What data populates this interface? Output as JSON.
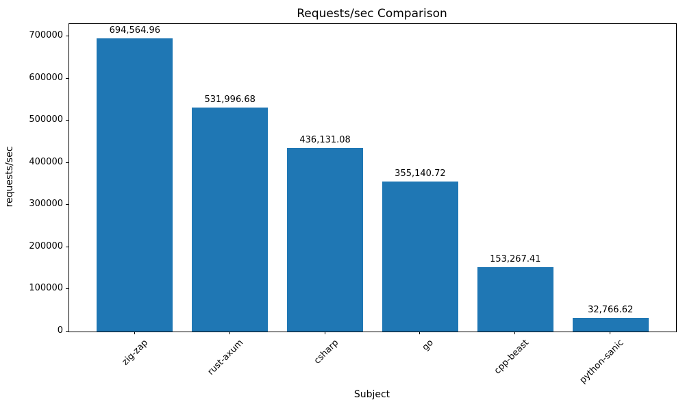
{
  "chart_data": {
    "type": "bar",
    "title": "Requests/sec Comparison",
    "xlabel": "Subject",
    "ylabel": "requests/sec",
    "categories": [
      "zig-zap",
      "rust-axum",
      "csharp",
      "go",
      "cpp-beast",
      "python-sanic"
    ],
    "values": [
      694564.96,
      531996.68,
      436131.08,
      355140.72,
      153267.41,
      32766.62
    ],
    "value_labels": [
      "694,564.96",
      "531,996.68",
      "436,131.08",
      "355,140.72",
      "153,267.41",
      "32,766.62"
    ],
    "bar_color": "#1f77b4",
    "ylim": [
      0,
      729293
    ],
    "yticks": [
      0,
      100000,
      200000,
      300000,
      400000,
      500000,
      600000,
      700000
    ],
    "ytick_labels": [
      "0",
      "100000",
      "200000",
      "300000",
      "400000",
      "500000",
      "600000",
      "700000"
    ],
    "xtick_rotation_deg": 45,
    "grid": false,
    "legend": null
  }
}
